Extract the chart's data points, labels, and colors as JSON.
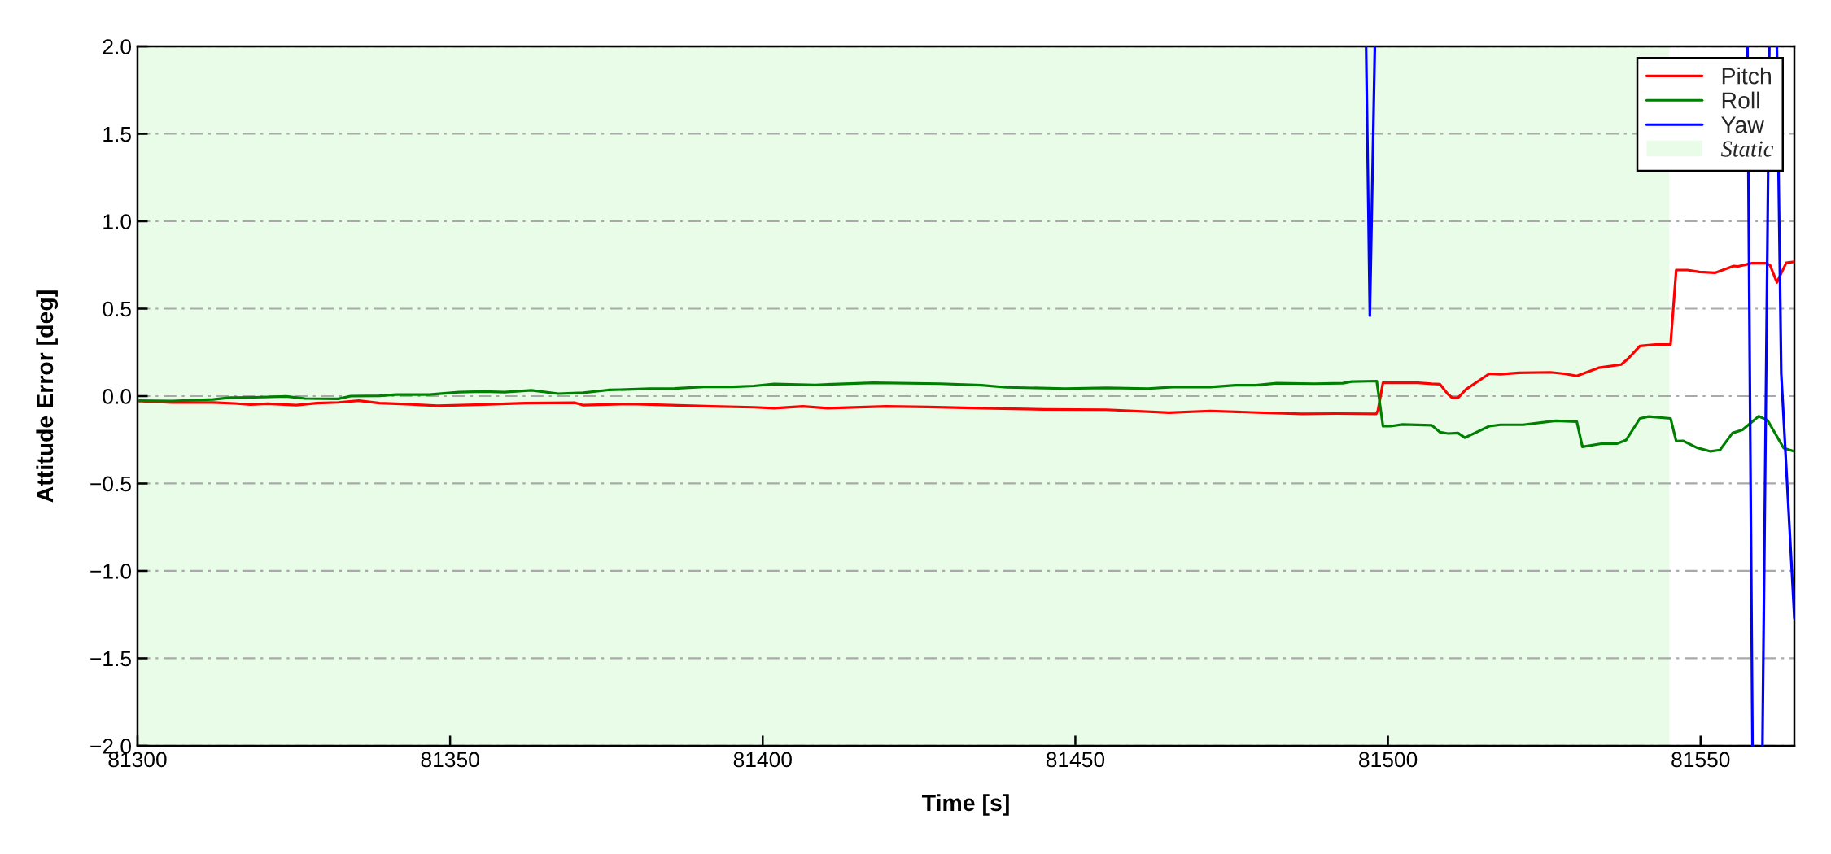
{
  "chart_data": {
    "type": "line",
    "xlabel": "Time [s]",
    "ylabel": "Attitude Error [deg]",
    "xlim": [
      81300,
      81565
    ],
    "ylim": [
      -2,
      2
    ],
    "xticks": [
      81300,
      81350,
      81400,
      81450,
      81500,
      81550
    ],
    "yticks": [
      {
        "value": -2,
        "label": "−2.0"
      },
      {
        "value": -1.5,
        "label": "−1.5"
      },
      {
        "value": -1,
        "label": "−1.0"
      },
      {
        "value": -0.5,
        "label": "−0.5"
      },
      {
        "value": 0,
        "label": "0.0"
      },
      {
        "value": 0.5,
        "label": "0.5"
      },
      {
        "value": 1,
        "label": "1.0"
      },
      {
        "value": 1.5,
        "label": "1.5"
      },
      {
        "value": 2,
        "label": "2.0"
      }
    ],
    "grid": "y",
    "legend": "top right",
    "line_style": "solid",
    "bands": [
      {
        "axis": "x",
        "from": 81300,
        "to": 81545,
        "label": "Static",
        "color": "#e8fce8"
      }
    ],
    "series": [
      {
        "name": "Pitch",
        "color": "#ff0000",
        "x": [
          81300,
          81305.5,
          81312.1,
          81315.5,
          81318.1,
          81320.8,
          81325.4,
          81328.7,
          81332.1,
          81335.4,
          81338.7,
          81342.1,
          81348.0,
          81355.3,
          81362.0,
          81370.0,
          81371.3,
          81378.6,
          81385.3,
          81391.9,
          81398.6,
          81401.8,
          81406.4,
          81410.4,
          81419.7,
          81426.4,
          81435.0,
          81445.0,
          81455.0,
          81465.0,
          81471.6,
          81478.2,
          81486.2,
          81491.7,
          81498.1,
          81498.4,
          81499.2,
          81504.8,
          81507.0,
          81508.3,
          81509.6,
          81510.3,
          81511.2,
          81512.5,
          81516.2,
          81518.0,
          81520.9,
          81526.0,
          81528.2,
          81530.2,
          81531.5,
          81533.7,
          81537.3,
          81538.4,
          81540.3,
          81542.8,
          81545.2,
          81546.1,
          81547.9,
          81549.8,
          81552.3,
          81555.3,
          81556.0,
          81558.2,
          81560.4,
          81561.1,
          81562.2,
          81563.7,
          81565.0
        ],
        "values": [
          -0.028,
          -0.037,
          -0.037,
          -0.042,
          -0.049,
          -0.044,
          -0.052,
          -0.04,
          -0.036,
          -0.026,
          -0.04,
          -0.045,
          -0.055,
          -0.048,
          -0.04,
          -0.038,
          -0.052,
          -0.045,
          -0.052,
          -0.059,
          -0.064,
          -0.069,
          -0.059,
          -0.069,
          -0.059,
          -0.062,
          -0.069,
          -0.076,
          -0.078,
          -0.095,
          -0.085,
          -0.093,
          -0.102,
          -0.1,
          -0.102,
          -0.081,
          0.076,
          0.076,
          0.07,
          0.068,
          0.01,
          -0.01,
          -0.01,
          0.039,
          0.128,
          0.125,
          0.133,
          0.136,
          0.128,
          0.115,
          0.133,
          0.162,
          0.18,
          0.214,
          0.287,
          0.295,
          0.295,
          0.721,
          0.721,
          0.71,
          0.705,
          0.744,
          0.742,
          0.76,
          0.76,
          0.749,
          0.65,
          0.762,
          0.768
        ]
      },
      {
        "name": "Roll",
        "color": "#008000",
        "x": [
          81300,
          81305.5,
          81312.1,
          81314.8,
          81318.8,
          81323.8,
          81326.8,
          81332.1,
          81334.1,
          81338.7,
          81341.4,
          81346.7,
          81351.4,
          81355.3,
          81358.7,
          81363.0,
          81367.3,
          81371.3,
          81375.3,
          81381.9,
          81385.9,
          81390.6,
          81395.2,
          81398.6,
          81401.8,
          81408.4,
          81417.7,
          81428.4,
          81435.0,
          81439.0,
          81448.3,
          81455.0,
          81461.6,
          81465.6,
          81471.6,
          81475.6,
          81478.9,
          81482.2,
          81488.2,
          81492.8,
          81494.2,
          81498.2,
          81499.2,
          81500.4,
          81502.3,
          81507.0,
          81508.3,
          81509.6,
          81511.2,
          81512.3,
          81516.2,
          81518.0,
          81521.6,
          81526.8,
          81530.2,
          81531.1,
          81534.1,
          81536.6,
          81538.1,
          81540.3,
          81541.7,
          81545.2,
          81546.1,
          81547.2,
          81549.4,
          81551.6,
          81553.1,
          81555.1,
          81556.7,
          81559.3,
          81560.7,
          81563.3,
          81565.0
        ],
        "values": [
          -0.026,
          -0.028,
          -0.019,
          -0.009,
          -0.007,
          -0.002,
          -0.014,
          -0.016,
          0.0,
          0.002,
          0.009,
          0.009,
          0.023,
          0.026,
          0.023,
          0.033,
          0.014,
          0.019,
          0.035,
          0.042,
          0.044,
          0.053,
          0.053,
          0.058,
          0.069,
          0.064,
          0.076,
          0.071,
          0.062,
          0.05,
          0.043,
          0.047,
          0.043,
          0.052,
          0.052,
          0.062,
          0.062,
          0.074,
          0.071,
          0.074,
          0.083,
          0.086,
          -0.172,
          -0.172,
          -0.162,
          -0.167,
          -0.206,
          -0.214,
          -0.211,
          -0.238,
          -0.172,
          -0.164,
          -0.164,
          -0.141,
          -0.146,
          -0.29,
          -0.272,
          -0.272,
          -0.251,
          -0.128,
          -0.117,
          -0.128,
          -0.258,
          -0.256,
          -0.295,
          -0.316,
          -0.308,
          -0.211,
          -0.193,
          -0.115,
          -0.138,
          -0.298,
          -0.316
        ]
      },
      {
        "name": "Yaw",
        "color": "#0000ff",
        "x": [
          81496.5,
          81497.1,
          81497.9,
          81527.0,
          81557.5,
          81558.3,
          81559.0,
          81559.9,
          81561.0,
          81561.6,
          81562.2,
          81562.9,
          81565.0
        ],
        "values": [
          2.0,
          0.46,
          2.0,
          null,
          2.0,
          -2.0,
          null,
          -2.0,
          2.0,
          null,
          2.0,
          0.13,
          -1.27
        ]
      }
    ]
  }
}
